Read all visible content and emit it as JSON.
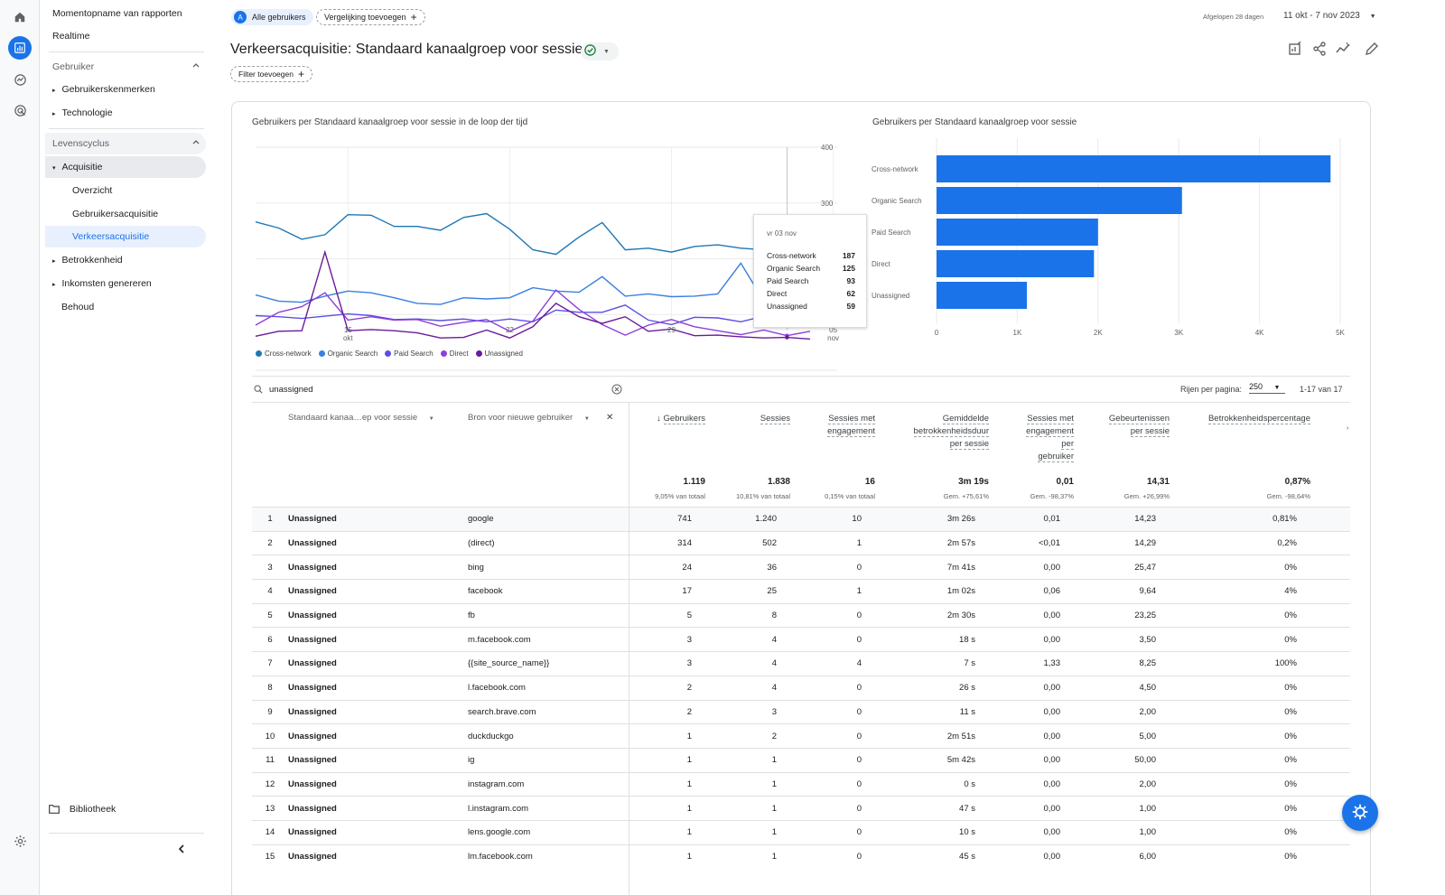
{
  "nav": {
    "snapshot": "Momentopname van rapporten",
    "realtime": "Realtime",
    "user_section": "Gebruiker",
    "user_attributes": "Gebruikerskenmerken",
    "technology": "Technologie",
    "lifecycle_section": "Levenscyclus",
    "acquisition": "Acquisitie",
    "overview": "Overzicht",
    "user_acquisition": "Gebruikersacquisitie",
    "traffic_acquisition": "Verkeersacquisitie",
    "engagement": "Betrokkenheid",
    "monetization": "Inkomsten genereren",
    "retention": "Behoud",
    "library": "Bibliotheek"
  },
  "header": {
    "segment_avatar": "A",
    "segment_label": "Alle gebruikers",
    "add_comparison": "Vergelijking toevoegen",
    "date_prefix": "Afgelopen 28 dagen",
    "date_range": "11 okt - 7 nov 2023",
    "title": "Verkeersacquisitie: Standaard kanaalgroep voor sessie",
    "add_filter": "Filter toevoegen"
  },
  "colors": {
    "accent": "#1a73e8",
    "cross_network": "#1f78b4",
    "organic_search": "#3a7fe0",
    "paid_search": "#5c4ee5",
    "direct": "#8e3fd9",
    "unassigned": "#6a1b9a"
  },
  "line_chart": {
    "title": "Gebruikers per Standaard kanaalgroep voor sessie in de loop der tijd",
    "y_ticks": [
      "400",
      "300"
    ],
    "x_ticks": [
      {
        "day": "15",
        "month": "okt"
      },
      {
        "day": "22",
        "month": ""
      },
      {
        "day": "29",
        "month": ""
      },
      {
        "day": "05",
        "month": "nov"
      }
    ],
    "legend": [
      "Cross-network",
      "Organic Search",
      "Paid Search",
      "Direct",
      "Unassigned"
    ],
    "tooltip": {
      "date": "vr 03 nov",
      "rows": [
        {
          "label": "Cross-network",
          "value": "187"
        },
        {
          "label": "Organic Search",
          "value": "125"
        },
        {
          "label": "Paid Search",
          "value": "93"
        },
        {
          "label": "Direct",
          "value": "62"
        },
        {
          "label": "Unassigned",
          "value": "59"
        }
      ]
    }
  },
  "chart_data": [
    {
      "type": "line",
      "title": "Gebruikers per Standaard kanaalgroep voor sessie in de loop der tijd",
      "x": [
        "11 okt",
        "12 okt",
        "13 okt",
        "14 okt",
        "15 okt",
        "16 okt",
        "17 okt",
        "18 okt",
        "19 okt",
        "20 okt",
        "21 okt",
        "22 okt",
        "23 okt",
        "24 okt",
        "25 okt",
        "26 okt",
        "27 okt",
        "28 okt",
        "29 okt",
        "30 okt",
        "31 okt",
        "01 nov",
        "02 nov",
        "03 nov",
        "04 nov"
      ],
      "ylim": [
        0,
        400
      ],
      "series": [
        {
          "name": "Cross-network",
          "values": [
            266,
            255,
            235,
            243,
            279,
            278,
            258,
            258,
            251,
            274,
            281,
            253,
            216,
            208,
            239,
            265,
            216,
            219,
            212,
            222,
            225,
            219,
            216,
            187,
            193
          ]
        },
        {
          "name": "Organic Search",
          "values": [
            135,
            124,
            122,
            133,
            142,
            139,
            130,
            120,
            118,
            130,
            128,
            130,
            148,
            142,
            140,
            168,
            133,
            137,
            132,
            133,
            137,
            192,
            124,
            125,
            121
          ]
        },
        {
          "name": "Paid Search",
          "values": [
            98,
            96,
            93,
            97,
            101,
            98,
            91,
            92,
            89,
            92,
            87,
            92,
            87,
            108,
            104,
            104,
            117,
            90,
            82,
            95,
            94,
            87,
            97,
            93,
            89
          ]
        },
        {
          "name": "Direct",
          "values": [
            81,
            104,
            114,
            139,
            90,
            96,
            90,
            91,
            79,
            86,
            91,
            70,
            88,
            144,
            109,
            82,
            63,
            81,
            91,
            78,
            71,
            64,
            72,
            62,
            70
          ]
        },
        {
          "name": "Unassigned",
          "values": [
            61,
            70,
            71,
            212,
            71,
            73,
            71,
            67,
            58,
            59,
            72,
            58,
            78,
            120,
            96,
            84,
            96,
            70,
            74,
            62,
            63,
            60,
            58,
            59,
            56
          ]
        }
      ]
    },
    {
      "type": "bar",
      "title": "Gebruikers per Standaard kanaalgroep voor sessie",
      "categories": [
        "Cross-network",
        "Organic Search",
        "Paid Search",
        "Direct",
        "Unassigned"
      ],
      "values": [
        4880,
        3040,
        2000,
        1950,
        1119
      ],
      "x_ticks": [
        "0",
        "1K",
        "2K",
        "3K",
        "4K",
        "5K"
      ],
      "xlim": [
        0,
        5000
      ]
    }
  ],
  "table": {
    "search_value": "unassigned",
    "rows_per_page_label": "Rijen per pagina:",
    "rows_per_page_value": "250",
    "pagination": "1-17 van 17",
    "dim1_label": "Standaard kanaa…ep voor sessie",
    "dim2_label": "Bron voor nieuwe gebruiker",
    "col_users": "Gebruikers",
    "col_sessions": "Sessies",
    "col_engaged_1": "Sessies met",
    "col_engaged_2": "engagement",
    "col_avgdur_1": "Gemiddelde",
    "col_avgdur_2": "betrokkenheidsduur",
    "col_avgdur_3": "per sessie",
    "col_engpu_1": "Sessies met",
    "col_engpu_2": "engagement",
    "col_engpu_3": "per",
    "col_engpu_4": "gebruiker",
    "col_events_1": "Gebeurtenissen",
    "col_events_2": "per sessie",
    "col_rate": "Betrokkenheidspercentage",
    "totals": [
      {
        "value": "1.119",
        "sub": "9,05% van totaal"
      },
      {
        "value": "1.838",
        "sub": "10,81% van totaal"
      },
      {
        "value": "16",
        "sub": "0,15% van totaal"
      },
      {
        "value": "3m 19s",
        "sub": "Gem. +75,61%"
      },
      {
        "value": "0,01",
        "sub": "Gem. -98,37%"
      },
      {
        "value": "14,31",
        "sub": "Gem. +26,99%"
      },
      {
        "value": "0,87%",
        "sub": "Gem. -98,64%"
      }
    ],
    "rows": [
      {
        "i": "1",
        "ch": "Unassigned",
        "src": "google",
        "u": "741",
        "s": "1.240",
        "e": "10",
        "d": "3m 26s",
        "ep": "0,01",
        "ev": "14,23",
        "r": "0,81%"
      },
      {
        "i": "2",
        "ch": "Unassigned",
        "src": "(direct)",
        "u": "314",
        "s": "502",
        "e": "1",
        "d": "2m 57s",
        "ep": "<0,01",
        "ev": "14,29",
        "r": "0,2%"
      },
      {
        "i": "3",
        "ch": "Unassigned",
        "src": "bing",
        "u": "24",
        "s": "36",
        "e": "0",
        "d": "7m 41s",
        "ep": "0,00",
        "ev": "25,47",
        "r": "0%"
      },
      {
        "i": "4",
        "ch": "Unassigned",
        "src": "facebook",
        "u": "17",
        "s": "25",
        "e": "1",
        "d": "1m 02s",
        "ep": "0,06",
        "ev": "9,64",
        "r": "4%"
      },
      {
        "i": "5",
        "ch": "Unassigned",
        "src": "fb",
        "u": "5",
        "s": "8",
        "e": "0",
        "d": "2m 30s",
        "ep": "0,00",
        "ev": "23,25",
        "r": "0%"
      },
      {
        "i": "6",
        "ch": "Unassigned",
        "src": "m.facebook.com",
        "u": "3",
        "s": "4",
        "e": "0",
        "d": "18 s",
        "ep": "0,00",
        "ev": "3,50",
        "r": "0%"
      },
      {
        "i": "7",
        "ch": "Unassigned",
        "src": "{{site_source_name}}",
        "u": "3",
        "s": "4",
        "e": "4",
        "d": "7 s",
        "ep": "1,33",
        "ev": "8,25",
        "r": "100%"
      },
      {
        "i": "8",
        "ch": "Unassigned",
        "src": "l.facebook.com",
        "u": "2",
        "s": "4",
        "e": "0",
        "d": "26 s",
        "ep": "0,00",
        "ev": "4,50",
        "r": "0%"
      },
      {
        "i": "9",
        "ch": "Unassigned",
        "src": "search.brave.com",
        "u": "2",
        "s": "3",
        "e": "0",
        "d": "11 s",
        "ep": "0,00",
        "ev": "2,00",
        "r": "0%"
      },
      {
        "i": "10",
        "ch": "Unassigned",
        "src": "duckduckgo",
        "u": "1",
        "s": "2",
        "e": "0",
        "d": "2m 51s",
        "ep": "0,00",
        "ev": "5,00",
        "r": "0%"
      },
      {
        "i": "11",
        "ch": "Unassigned",
        "src": "ig",
        "u": "1",
        "s": "1",
        "e": "0",
        "d": "5m 42s",
        "ep": "0,00",
        "ev": "50,00",
        "r": "0%"
      },
      {
        "i": "12",
        "ch": "Unassigned",
        "src": "instagram.com",
        "u": "1",
        "s": "1",
        "e": "0",
        "d": "0 s",
        "ep": "0,00",
        "ev": "2,00",
        "r": "0%"
      },
      {
        "i": "13",
        "ch": "Unassigned",
        "src": "l.instagram.com",
        "u": "1",
        "s": "1",
        "e": "0",
        "d": "47 s",
        "ep": "0,00",
        "ev": "1,00",
        "r": "0%"
      },
      {
        "i": "14",
        "ch": "Unassigned",
        "src": "lens.google.com",
        "u": "1",
        "s": "1",
        "e": "0",
        "d": "10 s",
        "ep": "0,00",
        "ev": "1,00",
        "r": "0%"
      },
      {
        "i": "15",
        "ch": "Unassigned",
        "src": "lm.facebook.com",
        "u": "1",
        "s": "1",
        "e": "0",
        "d": "45 s",
        "ep": "0,00",
        "ev": "6,00",
        "r": "0%"
      }
    ]
  }
}
